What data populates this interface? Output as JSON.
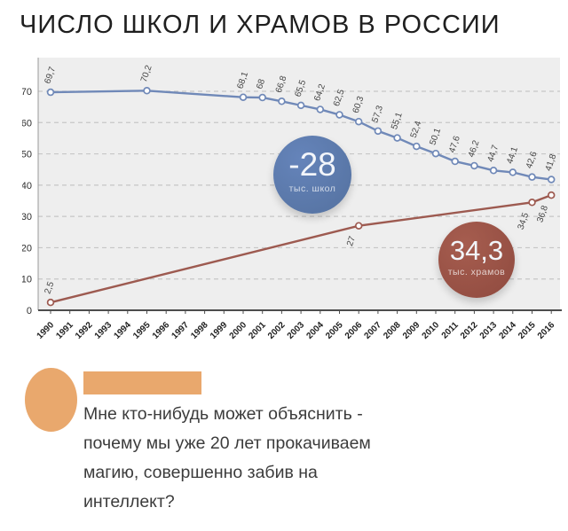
{
  "title": "ЧИСЛО ШКОЛ И ХРАМОВ В РОССИИ",
  "chart_data": {
    "type": "line",
    "title": "ЧИСЛО ШКОЛ И ХРАМОВ В РОССИИ",
    "x": [
      1990,
      1991,
      1992,
      1993,
      1994,
      1995,
      1996,
      1997,
      1998,
      1999,
      2000,
      2001,
      2002,
      2003,
      2004,
      2005,
      2006,
      2007,
      2008,
      2009,
      2010,
      2011,
      2012,
      2013,
      2014,
      2015,
      2016
    ],
    "ylim": [
      0,
      70
    ],
    "yticks": [
      0,
      10,
      20,
      30,
      40,
      50,
      60,
      70
    ],
    "grid": "dashed-horizontal",
    "plot_bg": "#eeeeee",
    "series": [
      {
        "name": "schools",
        "color": "#7089b8",
        "points": [
          [
            1990,
            69.7,
            "69,7",
            "above"
          ],
          [
            1995,
            70.2,
            "70,2",
            "above"
          ],
          [
            2000,
            68.1,
            "68,1",
            "above"
          ],
          [
            2001,
            68,
            "68",
            "above"
          ],
          [
            2002,
            66.8,
            "66,8",
            "above"
          ],
          [
            2003,
            65.5,
            "65,5",
            "above"
          ],
          [
            2004,
            64.2,
            "64,2",
            "above"
          ],
          [
            2005,
            62.5,
            "62,5",
            "above"
          ],
          [
            2006,
            60.3,
            "60,3",
            "above"
          ],
          [
            2007,
            57.3,
            "57,3",
            "above"
          ],
          [
            2008,
            55.1,
            "55,1",
            "above"
          ],
          [
            2009,
            52.4,
            "52,4",
            "above"
          ],
          [
            2010,
            50.1,
            "50,1",
            "above"
          ],
          [
            2011,
            47.6,
            "47,6",
            "above"
          ],
          [
            2012,
            46.2,
            "46,2",
            "above"
          ],
          [
            2013,
            44.7,
            "44,7",
            "above"
          ],
          [
            2014,
            44.1,
            "44,1",
            "above"
          ],
          [
            2015,
            42.6,
            "42,6",
            "above"
          ],
          [
            2016,
            41.8,
            "41,8",
            "above"
          ]
        ]
      },
      {
        "name": "churches",
        "color": "#9d5a50",
        "points": [
          [
            1990,
            2.5,
            "2,5",
            "above"
          ],
          [
            2006,
            27,
            "27",
            "below"
          ],
          [
            2015,
            34.5,
            "34,5",
            "below"
          ],
          [
            2016,
            36.8,
            "36,8",
            "below"
          ]
        ]
      }
    ],
    "badges": [
      {
        "value": "-28",
        "caption": "тыс. школ",
        "color": "#54719f",
        "color_light": "#6584ba"
      },
      {
        "value": "34,3",
        "caption": "тыс. храмов",
        "color": "#8f4a3f",
        "color_light": "#a65d4f"
      }
    ]
  },
  "comment": {
    "accent_color": "#e9a86d",
    "lines": [
      "Мне кто-нибудь может объяснить -",
      "почему мы уже 20 лет прокачиваем",
      "магию, совершенно забив на",
      "интеллект?"
    ]
  }
}
